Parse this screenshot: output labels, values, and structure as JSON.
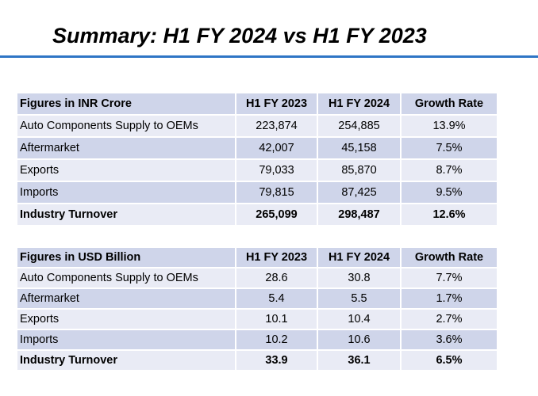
{
  "title": "Summary: H1 FY 2024 vs H1 FY 2023",
  "tables": [
    {
      "headers": [
        "Figures in INR Crore",
        "H1 FY 2023",
        "H1 FY 2024",
        "Growth Rate"
      ],
      "rows": [
        [
          "Auto Components Supply to OEMs",
          "223,874",
          "254,885",
          "13.9%"
        ],
        [
          "Aftermarket",
          "42,007",
          "45,158",
          "7.5%"
        ],
        [
          "Exports",
          "79,033",
          "85,870",
          "8.7%"
        ],
        [
          "Imports",
          "79,815",
          "87,425",
          "9.5%"
        ],
        [
          "Industry Turnover",
          "265,099",
          "298,487",
          "12.6%"
        ]
      ]
    },
    {
      "headers": [
        "Figures in USD Billion",
        "H1 FY 2023",
        "H1 FY 2024",
        "Growth Rate"
      ],
      "rows": [
        [
          "Auto Components Supply to OEMs",
          "28.6",
          "30.8",
          "7.7%"
        ],
        [
          "Aftermarket",
          "5.4",
          "5.5",
          "1.7%"
        ],
        [
          "Exports",
          "10.1",
          "10.4",
          "2.7%"
        ],
        [
          "Imports",
          "10.2",
          "10.6",
          "3.6%"
        ],
        [
          "Industry Turnover",
          "33.9",
          "36.1",
          "6.5%"
        ]
      ]
    }
  ]
}
